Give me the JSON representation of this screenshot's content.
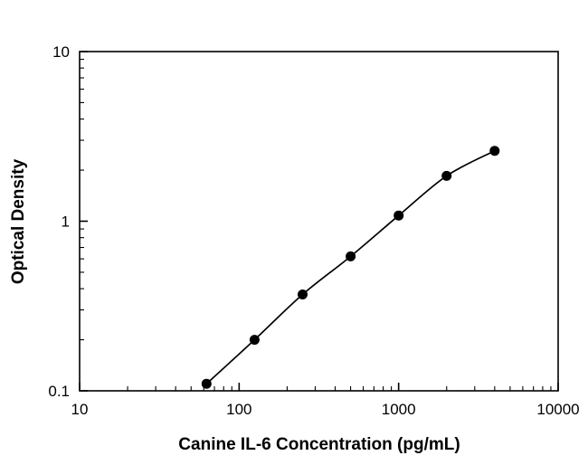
{
  "chart_data": {
    "type": "scatter",
    "title": "",
    "xlabel": "Canine IL-6 Concentration (pg/mL)",
    "ylabel": "Optical Density",
    "x_scale": "log",
    "y_scale": "log",
    "xlim": [
      10,
      10000
    ],
    "ylim": [
      0.1,
      10
    ],
    "x_ticks": [
      10,
      100,
      1000,
      10000
    ],
    "x_tick_labels": [
      "10",
      "100",
      "1000",
      "10000"
    ],
    "y_ticks": [
      0.1,
      1,
      10
    ],
    "y_tick_labels": [
      "0.1",
      "1",
      "10"
    ],
    "grid": false,
    "legend": false,
    "curve": "smooth-fit-through-points",
    "series": [
      {
        "name": "standard-curve",
        "marker": "filled-circle",
        "points": [
          {
            "x": 62.5,
            "y": 0.11
          },
          {
            "x": 125,
            "y": 0.2
          },
          {
            "x": 250,
            "y": 0.37
          },
          {
            "x": 500,
            "y": 0.62
          },
          {
            "x": 1000,
            "y": 1.08
          },
          {
            "x": 2000,
            "y": 1.85
          },
          {
            "x": 4000,
            "y": 2.6
          }
        ]
      }
    ]
  },
  "colors": {
    "axis": "#000000",
    "marker": "#000000",
    "curve": "#000000",
    "background": "#ffffff"
  }
}
